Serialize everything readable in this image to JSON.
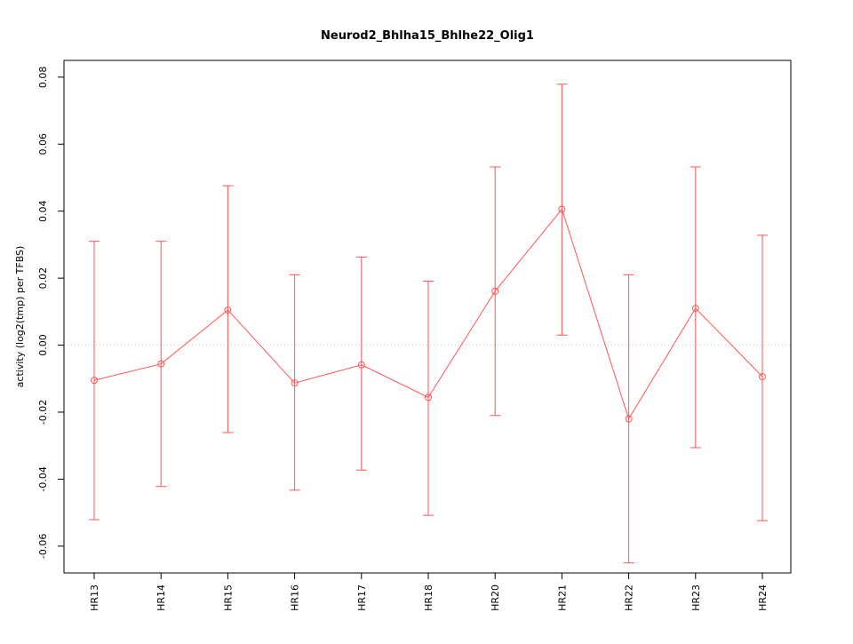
{
  "chart_data": {
    "type": "line",
    "title": "Neurod2_Bhlha15_Bhlhe22_Olig1",
    "xlabel": "",
    "ylabel": "activity (log2(tmp) per TFBS)",
    "categories": [
      "HR13",
      "HR14",
      "HR15",
      "HR16",
      "HR17",
      "HR18",
      "HR20",
      "HR21",
      "HR22",
      "HR23",
      "HR24"
    ],
    "series": [
      {
        "name": "activity",
        "values": [
          -0.0105,
          -0.0056,
          0.0105,
          -0.0113,
          -0.0059,
          -0.0156,
          0.0161,
          0.0406,
          -0.022,
          0.011,
          -0.0094
        ],
        "upper": [
          0.031,
          0.031,
          0.0476,
          0.021,
          0.0263,
          0.0191,
          0.0532,
          0.0779,
          0.021,
          0.0532,
          0.0328
        ],
        "lower": [
          -0.0521,
          -0.0422,
          -0.0261,
          -0.0433,
          -0.0373,
          -0.0508,
          -0.021,
          0.003,
          -0.065,
          -0.0306,
          -0.0524
        ]
      }
    ],
    "ylim": [
      -0.068,
      0.085
    ],
    "yticks": [
      -0.06,
      -0.04,
      -0.02,
      0.0,
      0.02,
      0.04,
      0.06,
      0.08
    ],
    "reference_line": 0,
    "marker": "open-circle",
    "error_bars": true,
    "grid": false,
    "legend_position": "none",
    "colors": {
      "series": "#ff5555",
      "reference": "#c8c8c8",
      "box": "#000000",
      "background": "#ffffff"
    }
  }
}
